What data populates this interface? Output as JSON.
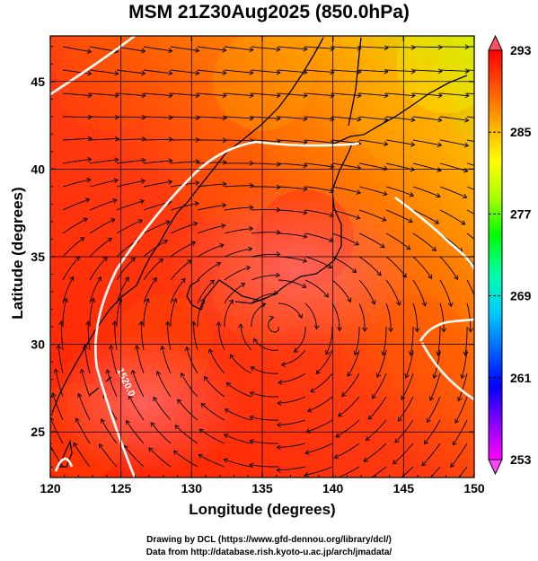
{
  "chart_data": {
    "type": "heatmap",
    "title": "MSM 21Z30Aug2025 (850.0hPa)",
    "xlabel": "Longitude (degrees)",
    "ylabel": "Latitude  (degrees)",
    "xlim": [
      120,
      150
    ],
    "ylim": [
      22.4,
      47.6
    ],
    "x_ticks": [
      120,
      125,
      130,
      135,
      140,
      145,
      150
    ],
    "y_ticks": [
      25,
      30,
      35,
      40,
      45
    ],
    "grid": true,
    "colorbar": {
      "min": 253,
      "max": 293,
      "tick_labels": [
        293,
        285,
        277,
        269,
        261,
        253
      ],
      "colors": [
        "#ff00ff",
        "#8800ff",
        "#0000ff",
        "#0066ff",
        "#00ccff",
        "#00ffaa",
        "#00ff00",
        "#aaff00",
        "#ffff00",
        "#ffaa00",
        "#ff5500",
        "#ff0000"
      ]
    },
    "contour_label": "1520.0",
    "field_samples": [
      {
        "lon": 122,
        "lat": 25,
        "value": 291
      },
      {
        "lon": 128,
        "lat": 30,
        "value": 291
      },
      {
        "lon": 135,
        "lat": 33,
        "value": 291
      },
      {
        "lon": 138,
        "lat": 36,
        "value": 292
      },
      {
        "lon": 132,
        "lat": 40,
        "value": 289
      },
      {
        "lon": 135,
        "lat": 45,
        "value": 287
      },
      {
        "lon": 145,
        "lat": 43,
        "value": 284
      },
      {
        "lon": 148,
        "lat": 46,
        "value": 281
      },
      {
        "lon": 146,
        "lat": 30,
        "value": 290
      },
      {
        "lon": 124,
        "lat": 45,
        "value": 289
      }
    ]
  },
  "credits": {
    "line1": "Drawing by DCL (https://www.gfd-dennou.org/library/dcl/)",
    "line2": "Data from http://database.rish.kyoto-u.ac.jp/arch/jmadata/"
  }
}
